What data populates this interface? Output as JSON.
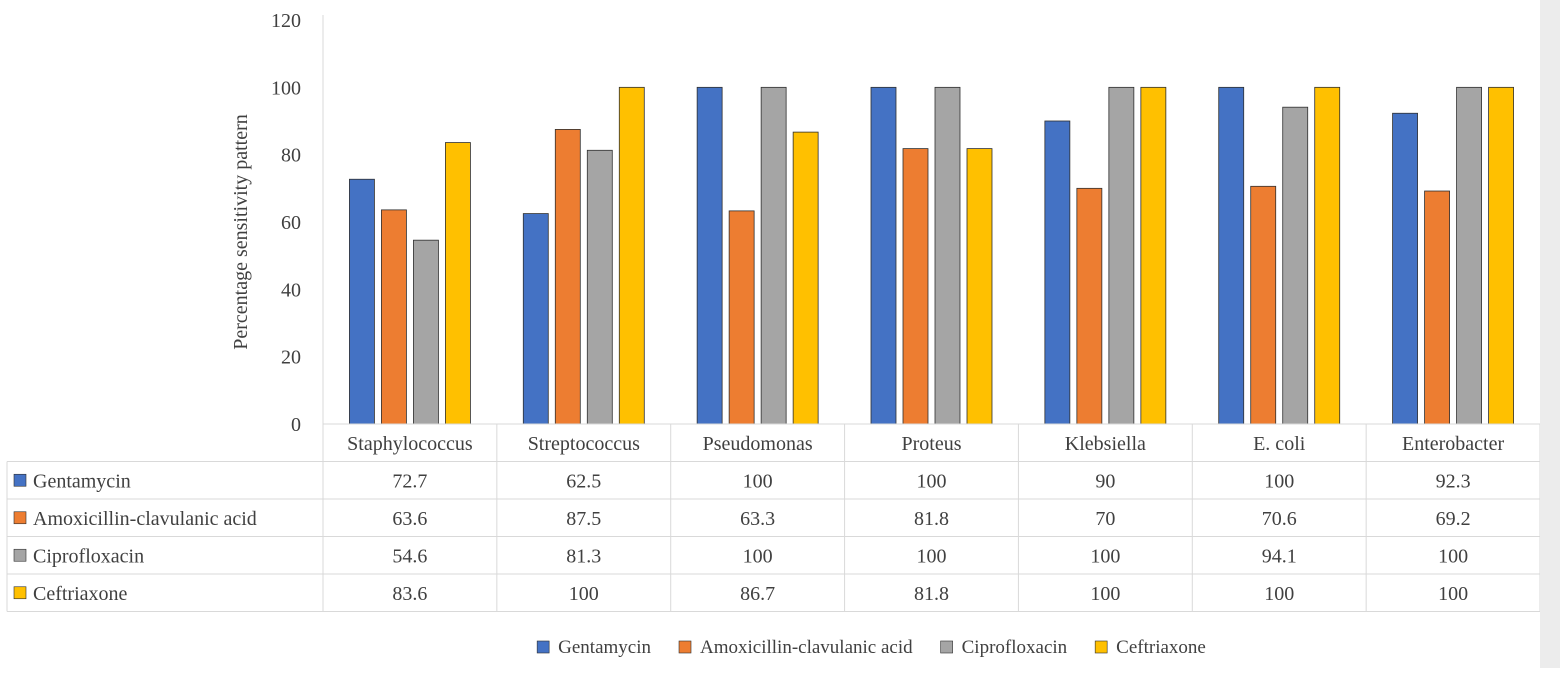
{
  "chart_data": {
    "type": "bar",
    "title": "",
    "xlabel": "",
    "ylabel": "Percentage sensitivity pattern",
    "ylim": [
      0,
      120
    ],
    "yticks": [
      0,
      20,
      40,
      60,
      80,
      100,
      120
    ],
    "categories": [
      "Staphylococcus",
      "Streptococcus",
      "Pseudomonas",
      "Proteus",
      "Klebsiella",
      "E. coli",
      "Enterobacter"
    ],
    "series": [
      {
        "name": "Gentamycin",
        "color": "#4472c4",
        "values": [
          72.7,
          62.5,
          100,
          100,
          90,
          100,
          92.3
        ]
      },
      {
        "name": "Amoxicillin-clavulanic acid",
        "color": "#ed7d31",
        "values": [
          63.6,
          87.5,
          63.3,
          81.8,
          70,
          70.6,
          69.2
        ]
      },
      {
        "name": "Ciprofloxacin",
        "color": "#a5a5a5",
        "values": [
          54.6,
          81.3,
          100,
          100,
          100,
          94.1,
          100
        ]
      },
      {
        "name": "Ceftriaxone",
        "color": "#ffc000",
        "values": [
          83.6,
          100,
          86.7,
          81.8,
          100,
          100,
          100
        ]
      }
    ],
    "value_labels": [
      [
        "72.7",
        "62.5",
        "100",
        "100",
        "90",
        "100",
        "92.3"
      ],
      [
        "63.6",
        "87.5",
        "63.3",
        "81.8",
        "70",
        "70.6",
        "69.2"
      ],
      [
        "54.6",
        "81.3",
        "100",
        "100",
        "100",
        "94.1",
        "100"
      ],
      [
        "83.6",
        "100",
        "86.7",
        "81.8",
        "100",
        "100",
        "100"
      ]
    ],
    "data_table": true,
    "legend_position": "bottom",
    "grid": false
  }
}
